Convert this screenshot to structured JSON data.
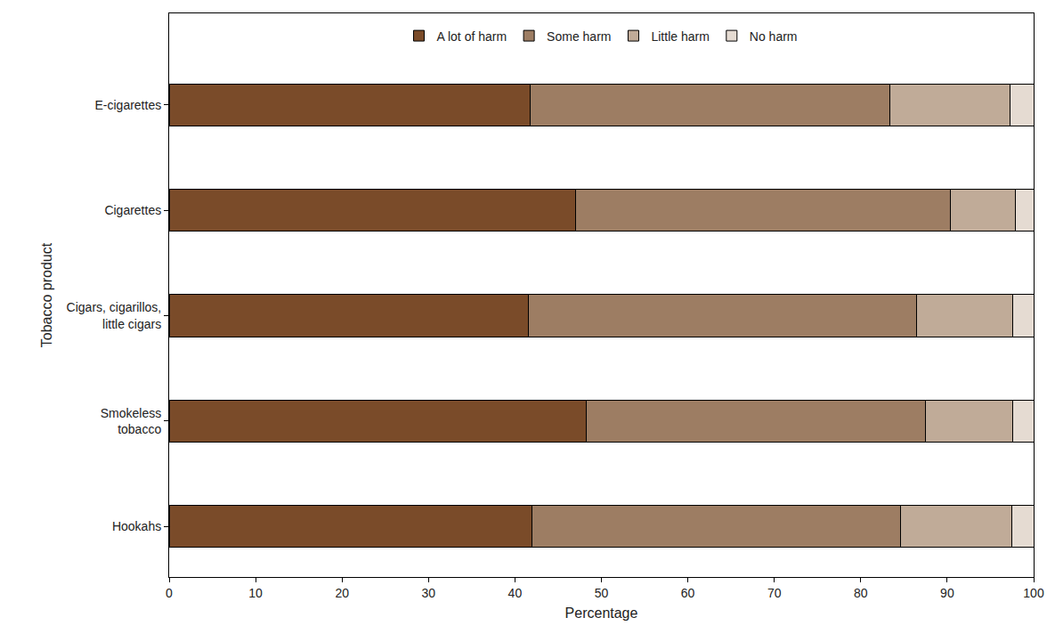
{
  "chart_data": {
    "type": "bar",
    "orientation": "horizontal",
    "stacked": true,
    "grid": false,
    "legend": "top",
    "x_label": "Percentage",
    "y_label": "Tobacco product",
    "categories": [
      "E-cigarettes",
      "Cigarettes",
      "Cigars, cigarillos, little cigars",
      "Smokeless tobacco",
      "Hookahs"
    ],
    "series": [
      {
        "name": "A lot of harm",
        "color": "#7a4b29",
        "values": [
          41.8,
          47.0,
          41.6,
          48.3,
          42.0
        ]
      },
      {
        "name": "Some harm",
        "color": "#9d7d63",
        "values": [
          41.6,
          43.4,
          44.9,
          39.2,
          42.6
        ]
      },
      {
        "name": "Little harm",
        "color": "#c0ab98",
        "values": [
          13.9,
          7.5,
          11.1,
          10.1,
          12.9
        ]
      },
      {
        "name": "No harm",
        "color": "#e5dbd2",
        "values": [
          2.7,
          2.1,
          2.4,
          2.4,
          2.5
        ]
      }
    ],
    "xlim": [
      0,
      100
    ],
    "xticks": [
      0,
      10,
      20,
      30,
      40,
      50,
      60,
      70,
      80,
      90,
      100
    ]
  }
}
